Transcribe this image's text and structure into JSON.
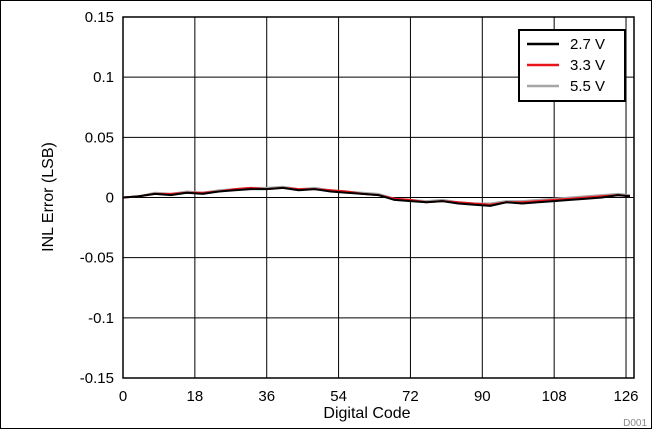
{
  "chart_data": {
    "type": "line",
    "title": "",
    "xlabel": "Digital Code",
    "ylabel": "INL Error (LSB)",
    "xlim": [
      0,
      128
    ],
    "ylim": [
      -0.15,
      0.15
    ],
    "xticks": [
      0,
      18,
      36,
      54,
      72,
      90,
      108,
      126
    ],
    "yticks": [
      -0.15,
      -0.1,
      -0.05,
      0,
      0.05,
      0.1,
      0.15
    ],
    "xtick_labels": [
      "0",
      "18",
      "36",
      "54",
      "72",
      "90",
      "108",
      "126"
    ],
    "ytick_labels": [
      "-0.15",
      "-0.1",
      "-0.05",
      "0",
      "0.05",
      "0.1",
      "0.15"
    ],
    "grid": true,
    "legend_position": "top-right",
    "figure_id": "D001",
    "x": [
      0,
      4,
      8,
      12,
      16,
      20,
      24,
      28,
      32,
      36,
      40,
      44,
      48,
      52,
      56,
      60,
      64,
      68,
      72,
      76,
      80,
      84,
      88,
      92,
      96,
      100,
      104,
      108,
      112,
      116,
      120,
      124,
      127
    ],
    "series": [
      {
        "name": "2.7 V",
        "color": "#000000",
        "values": [
          0.0,
          0.001,
          0.003,
          0.002,
          0.004,
          0.003,
          0.005,
          0.006,
          0.007,
          0.007,
          0.008,
          0.006,
          0.007,
          0.005,
          0.004,
          0.003,
          0.002,
          -0.002,
          -0.003,
          -0.004,
          -0.003,
          -0.005,
          -0.006,
          -0.007,
          -0.004,
          -0.005,
          -0.004,
          -0.003,
          -0.002,
          -0.001,
          0.0,
          0.002,
          0.001
        ]
      },
      {
        "name": "3.3 V",
        "color": "#e8141a",
        "values": [
          0.0,
          0.001,
          0.003,
          0.003,
          0.004,
          0.004,
          0.005,
          0.007,
          0.008,
          0.007,
          0.008,
          0.007,
          0.007,
          0.006,
          0.005,
          0.003,
          0.002,
          -0.001,
          -0.002,
          -0.004,
          -0.003,
          -0.004,
          -0.005,
          -0.006,
          -0.004,
          -0.004,
          -0.003,
          -0.002,
          -0.001,
          0.0,
          0.001,
          0.002,
          0.001
        ]
      },
      {
        "name": "5.5 V",
        "color": "#a6a6a6",
        "values": [
          0.0,
          0.001,
          0.004,
          0.003,
          0.005,
          0.004,
          0.006,
          0.007,
          0.008,
          0.008,
          0.009,
          0.007,
          0.008,
          0.006,
          0.005,
          0.004,
          0.003,
          -0.001,
          -0.002,
          -0.003,
          -0.002,
          -0.004,
          -0.005,
          -0.005,
          -0.003,
          -0.003,
          -0.002,
          -0.001,
          0.0,
          0.001,
          0.002,
          0.003,
          0.002
        ]
      }
    ]
  }
}
